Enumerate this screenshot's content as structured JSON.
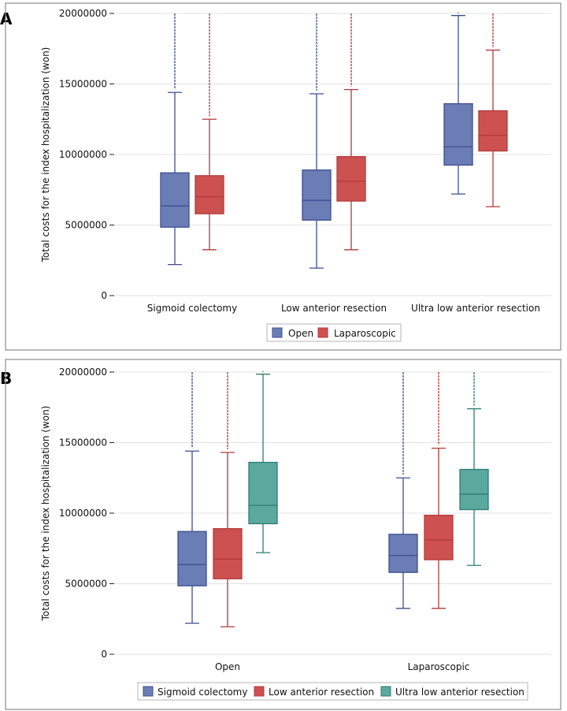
{
  "panels": {
    "a": {
      "letter": "A"
    },
    "b": {
      "letter": "B"
    }
  },
  "colors": {
    "blue_fill": "#6b7db5",
    "blue_line": "#3d4f8f",
    "red_fill": "#cd5150",
    "red_line": "#b23a3a",
    "teal_fill": "#5aa89e",
    "teal_line": "#2a7d72",
    "frame": "#8c8c8c",
    "grid": "#e3e3e3"
  },
  "chart_data": [
    {
      "type": "box",
      "panel": "A",
      "ylabel": "Total costs for the index hospitalization (won)",
      "ylim": [
        0,
        20000000
      ],
      "yticks": [
        "0",
        "5000000",
        "10000000",
        "15000000",
        "20000000"
      ],
      "categories": [
        "Sigmoid colectomy",
        "Low anterior resection",
        "Ultra low anterior resection"
      ],
      "legend": [
        "Open",
        "Laparoscopic"
      ],
      "series": [
        {
          "name": "Open",
          "color": "blue",
          "boxes": [
            {
              "min": 2200000,
              "q1": 4850000,
              "median": 6350000,
              "q3": 8700000,
              "max": 14400000
            },
            {
              "min": 1950000,
              "q1": 5350000,
              "median": 6750000,
              "q3": 8900000,
              "max": 14300000
            },
            {
              "min": 7200000,
              "q1": 9250000,
              "median": 10550000,
              "q3": 13600000,
              "max": 19850000
            }
          ]
        },
        {
          "name": "Laparoscopic",
          "color": "red",
          "boxes": [
            {
              "min": 3250000,
              "q1": 5800000,
              "median": 7000000,
              "q3": 8500000,
              "max": 12500000
            },
            {
              "min": 3250000,
              "q1": 6700000,
              "median": 8100000,
              "q3": 9850000,
              "max": 14600000
            },
            {
              "min": 6300000,
              "q1": 10250000,
              "median": 11350000,
              "q3": 13100000,
              "max": 17400000
            }
          ]
        }
      ]
    },
    {
      "type": "box",
      "panel": "B",
      "ylabel": "Total costs for the index hospitalization (won)",
      "ylim": [
        0,
        20000000
      ],
      "yticks": [
        "0",
        "5000000",
        "10000000",
        "15000000",
        "20000000"
      ],
      "categories": [
        "Open",
        "Laparoscopic"
      ],
      "legend": [
        "Sigmoid colectomy",
        "Low anterior resection",
        "Ultra low anterior resection"
      ],
      "series": [
        {
          "name": "Sigmoid colectomy",
          "color": "blue",
          "boxes": [
            {
              "min": 2200000,
              "q1": 4850000,
              "median": 6350000,
              "q3": 8700000,
              "max": 14400000
            },
            {
              "min": 3250000,
              "q1": 5800000,
              "median": 7000000,
              "q3": 8500000,
              "max": 12500000
            }
          ]
        },
        {
          "name": "Low anterior resection",
          "color": "red",
          "boxes": [
            {
              "min": 1950000,
              "q1": 5350000,
              "median": 6750000,
              "q3": 8900000,
              "max": 14300000
            },
            {
              "min": 3250000,
              "q1": 6700000,
              "median": 8100000,
              "q3": 9850000,
              "max": 14600000
            }
          ]
        },
        {
          "name": "Ultra low anterior resection",
          "color": "teal",
          "boxes": [
            {
              "min": 7200000,
              "q1": 9250000,
              "median": 10550000,
              "q3": 13600000,
              "max": 19850000
            },
            {
              "min": 6300000,
              "q1": 10250000,
              "median": 11350000,
              "q3": 13100000,
              "max": 17400000
            }
          ]
        }
      ]
    }
  ]
}
